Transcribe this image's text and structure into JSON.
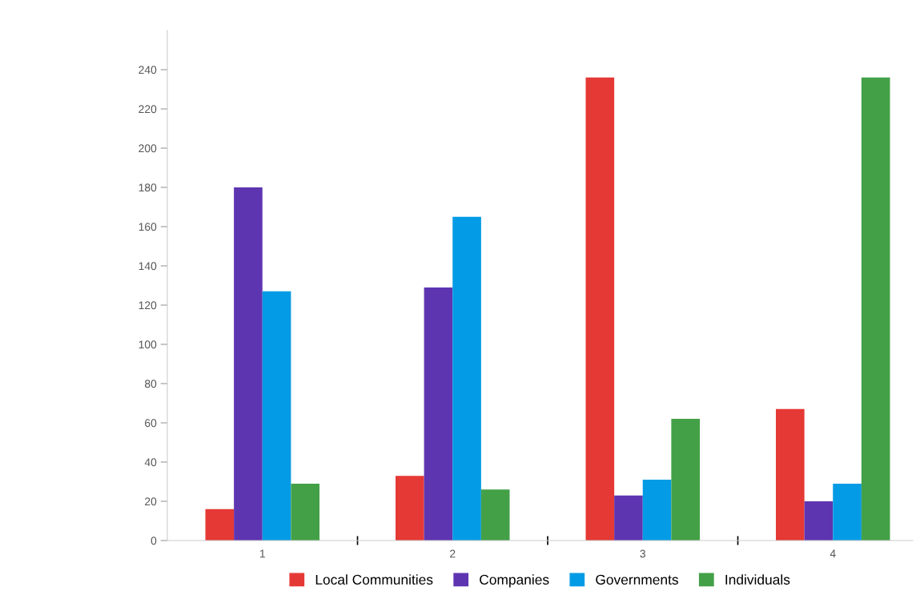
{
  "chart_data": {
    "type": "bar",
    "categories": [
      "1",
      "2",
      "3",
      "4"
    ],
    "series": [
      {
        "name": "Local Communities",
        "color": "#e53935",
        "values": [
          16,
          33,
          236,
          67
        ]
      },
      {
        "name": "Companies",
        "color": "#5e35b1",
        "values": [
          180,
          129,
          23,
          20
        ]
      },
      {
        "name": "Governments",
        "color": "#039be5",
        "values": [
          127,
          165,
          31,
          29
        ]
      },
      {
        "name": "Individuals",
        "color": "#43a047",
        "values": [
          29,
          26,
          62,
          236
        ]
      }
    ],
    "ylim": [
      0,
      260
    ],
    "yticks": [
      0,
      20,
      40,
      60,
      80,
      100,
      120,
      140,
      160,
      180,
      200,
      220,
      240
    ],
    "grid": false,
    "legend": "bottom"
  }
}
